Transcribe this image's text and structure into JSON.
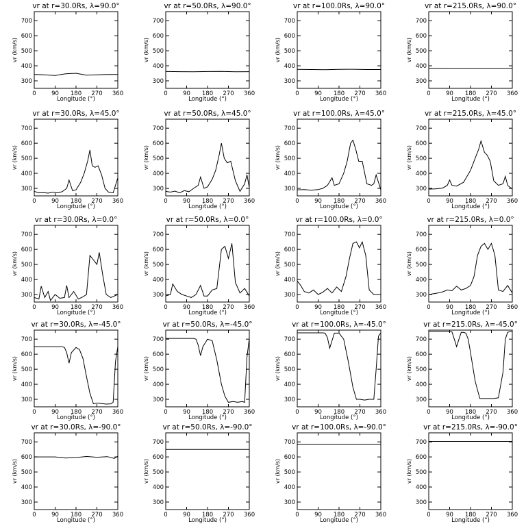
{
  "chart_data": {
    "type": "line",
    "xlabel": "Longitude (°)",
    "ylabel": "vr (km/s)",
    "xlim": [
      0,
      360
    ],
    "ylim": [
      250,
      760
    ],
    "xticks": [
      0,
      90,
      180,
      270,
      360
    ],
    "yticks": [
      300,
      400,
      500,
      600,
      700
    ],
    "grid": false,
    "panels": [
      {
        "title": "vr at r=30.0Rs, λ=90.0°",
        "x": [
          0,
          45,
          90,
          135,
          180,
          225,
          270,
          315,
          360
        ],
        "y": [
          342,
          340,
          335,
          347,
          350,
          338,
          340,
          342,
          342
        ]
      },
      {
        "title": "vr at r=50.0Rs, λ=90.0°",
        "x": [
          0,
          60,
          120,
          180,
          240,
          300,
          360
        ],
        "y": [
          362,
          361,
          360,
          362,
          363,
          360,
          361
        ]
      },
      {
        "title": "vr at r=100.0Rs, λ=90.0°",
        "x": [
          0,
          60,
          120,
          180,
          240,
          300,
          360
        ],
        "y": [
          376,
          375,
          374,
          376,
          377,
          375,
          375
        ]
      },
      {
        "title": "vr at r=215.0Rs, λ=90.0°",
        "x": [
          0,
          90,
          180,
          270,
          360
        ],
        "y": [
          383,
          382,
          382,
          382,
          382
        ]
      },
      {
        "title": "vr at r=30.0Rs, λ=45.0°",
        "x": [
          0,
          20,
          40,
          60,
          80,
          100,
          120,
          140,
          150,
          165,
          180,
          200,
          215,
          230,
          240,
          250,
          262,
          275,
          290,
          305,
          320,
          340,
          360
        ],
        "y": [
          280,
          270,
          272,
          268,
          275,
          270,
          278,
          300,
          355,
          285,
          290,
          340,
          400,
          480,
          555,
          450,
          440,
          450,
          390,
          300,
          275,
          270,
          370
        ]
      },
      {
        "title": "vr at r=50.0Rs, λ=45.0°",
        "x": [
          0,
          20,
          40,
          60,
          80,
          100,
          120,
          140,
          150,
          165,
          180,
          200,
          215,
          230,
          240,
          252,
          265,
          280,
          300,
          320,
          340,
          350,
          360
        ],
        "y": [
          280,
          275,
          282,
          270,
          285,
          278,
          300,
          320,
          375,
          300,
          310,
          360,
          420,
          520,
          600,
          500,
          470,
          480,
          350,
          280,
          330,
          390,
          305
        ]
      },
      {
        "title": "vr at r=100.0Rs, λ=45.0°",
        "x": [
          0,
          30,
          60,
          90,
          110,
          130,
          150,
          160,
          180,
          200,
          215,
          230,
          240,
          252,
          265,
          280,
          300,
          320,
          330,
          340,
          360
        ],
        "y": [
          290,
          292,
          288,
          292,
          300,
          320,
          370,
          320,
          330,
          400,
          480,
          600,
          620,
          560,
          480,
          480,
          330,
          320,
          330,
          390,
          290
        ]
      },
      {
        "title": "vr at r=215.0Rs, λ=45.0°",
        "x": [
          0,
          30,
          60,
          80,
          90,
          100,
          120,
          150,
          180,
          200,
          215,
          225,
          240,
          252,
          265,
          280,
          300,
          320,
          330,
          340,
          360
        ],
        "y": [
          295,
          297,
          302,
          320,
          355,
          320,
          315,
          340,
          420,
          500,
          560,
          615,
          540,
          520,
          480,
          350,
          320,
          330,
          380,
          320,
          295
        ]
      },
      {
        "title": "vr at r=30.0Rs, λ=0.0°",
        "x": [
          0,
          20,
          30,
          45,
          60,
          70,
          90,
          110,
          130,
          140,
          150,
          170,
          190,
          210,
          225,
          240,
          255,
          270,
          280,
          295,
          310,
          330,
          360
        ],
        "y": [
          280,
          270,
          355,
          280,
          320,
          260,
          300,
          275,
          280,
          360,
          280,
          320,
          270,
          285,
          300,
          560,
          530,
          500,
          580,
          430,
          300,
          280,
          300
        ]
      },
      {
        "title": "vr at r=50.0Rs, λ=0.0°",
        "x": [
          0,
          20,
          30,
          50,
          70,
          90,
          110,
          130,
          150,
          165,
          180,
          200,
          220,
          240,
          255,
          270,
          285,
          300,
          320,
          340,
          360
        ],
        "y": [
          290,
          300,
          370,
          320,
          300,
          290,
          280,
          300,
          360,
          290,
          290,
          330,
          340,
          600,
          620,
          540,
          640,
          380,
          310,
          340,
          290
        ]
      },
      {
        "title": "vr at r=100.0Rs, λ=0.0°",
        "x": [
          0,
          15,
          30,
          50,
          70,
          90,
          110,
          130,
          150,
          170,
          190,
          210,
          225,
          240,
          255,
          268,
          280,
          295,
          310,
          330,
          360
        ],
        "y": [
          390,
          360,
          320,
          310,
          330,
          300,
          315,
          340,
          310,
          350,
          320,
          420,
          540,
          640,
          650,
          610,
          650,
          560,
          330,
          300,
          300
        ]
      },
      {
        "title": "vr at r=215.0Rs, λ=0.0°",
        "x": [
          0,
          20,
          40,
          60,
          80,
          100,
          120,
          140,
          160,
          180,
          195,
          210,
          225,
          240,
          255,
          270,
          285,
          300,
          320,
          340,
          360
        ],
        "y": [
          300,
          305,
          310,
          318,
          330,
          325,
          355,
          330,
          340,
          360,
          420,
          560,
          620,
          640,
          600,
          640,
          560,
          330,
          320,
          360,
          310
        ]
      },
      {
        "title": "vr at r=30.0Rs, λ=-45.0°",
        "x": [
          0,
          50,
          100,
          120,
          130,
          140,
          150,
          160,
          180,
          195,
          210,
          225,
          240,
          255,
          270,
          290,
          310,
          330,
          340,
          350,
          360
        ],
        "y": [
          650,
          650,
          650,
          650,
          645,
          610,
          540,
          610,
          645,
          630,
          570,
          450,
          340,
          270,
          275,
          272,
          268,
          270,
          280,
          550,
          650
        ]
      },
      {
        "title": "vr at r=50.0Rs, λ=-45.0°",
        "x": [
          0,
          50,
          100,
          120,
          130,
          140,
          150,
          160,
          180,
          200,
          220,
          240,
          255,
          270,
          290,
          310,
          330,
          340,
          350,
          360
        ],
        "y": [
          705,
          705,
          705,
          705,
          700,
          660,
          590,
          650,
          700,
          690,
          560,
          400,
          320,
          280,
          285,
          280,
          285,
          280,
          580,
          705
        ]
      },
      {
        "title": "vr at r=100.0Rs, λ=-45.0°",
        "x": [
          0,
          40,
          80,
          110,
          120,
          130,
          140,
          150,
          160,
          170,
          180,
          200,
          220,
          240,
          255,
          270,
          290,
          310,
          330,
          340,
          350,
          360
        ],
        "y": [
          742,
          742,
          742,
          742,
          740,
          710,
          640,
          690,
          740,
          740,
          740,
          700,
          550,
          380,
          300,
          300,
          295,
          300,
          300,
          500,
          720,
          742
        ]
      },
      {
        "title": "vr at r=215.0Rs, λ=-45.0°",
        "x": [
          0,
          40,
          80,
          100,
          110,
          120,
          130,
          140,
          150,
          160,
          170,
          180,
          200,
          220,
          240,
          260,
          280,
          300,
          320,
          330,
          340,
          350,
          360
        ],
        "y": [
          752,
          752,
          752,
          748,
          700,
          650,
          700,
          745,
          745,
          740,
          700,
          610,
          420,
          305,
          305,
          305,
          305,
          310,
          480,
          700,
          745,
          750,
          752
        ]
      },
      {
        "title": "vr at r=30.0Rs, λ=-90.0°",
        "x": [
          0,
          45,
          90,
          135,
          180,
          225,
          270,
          315,
          345,
          360
        ],
        "y": [
          600,
          600,
          600,
          593,
          596,
          603,
          598,
          602,
          590,
          605
        ]
      },
      {
        "title": "vr at r=50.0Rs, λ=-90.0°",
        "x": [
          0,
          90,
          180,
          270,
          360
        ],
        "y": [
          650,
          650,
          650,
          650,
          650
        ]
      },
      {
        "title": "vr at r=100.0Rs, λ=-90.0°",
        "x": [
          0,
          90,
          180,
          270,
          360
        ],
        "y": [
          685,
          685,
          685,
          685,
          685
        ]
      },
      {
        "title": "vr at r=215.0Rs, λ=-90.0°",
        "x": [
          0,
          90,
          180,
          270,
          360
        ],
        "y": [
          703,
          703,
          703,
          703,
          703
        ]
      }
    ]
  }
}
